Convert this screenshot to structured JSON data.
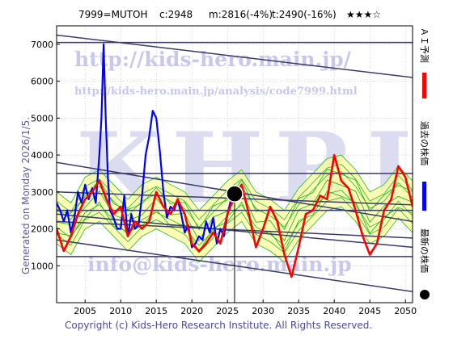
{
  "header": {
    "code": "7999=MUTOH",
    "current": "c:2948",
    "metric_m": "m:2816(-4%)",
    "metric_t": "t:2490(-16%)",
    "rating": "★★★☆"
  },
  "watermark": {
    "url": "http://kids-hero.main.jp/",
    "url2": "http://kids-hero.main.jp/analysis/code7999.html",
    "big": "KHRI",
    "email": "info@kids-hero.main.jp"
  },
  "side_label": "Generated on Monday 2026/1/5.",
  "copyright": "Copyright (c) Kids-Hero Research Institute. All Rights Reserved.",
  "legend": {
    "ai": "ＡＩ予測",
    "past": "過去の株価",
    "latest": "最新の株価"
  },
  "colors": {
    "ai": "#ff0000",
    "past": "#0000ff",
    "band_fill": "#ffff99",
    "band_line": "#22bb22",
    "trend": "#3a3a6a",
    "latest": "#000000"
  },
  "chart_data": {
    "type": "line",
    "xlim": [
      2001,
      2051
    ],
    "ylim": [
      0,
      7500
    ],
    "x_ticks": [
      2005,
      2010,
      2015,
      2020,
      2025,
      2030,
      2035,
      2040,
      2045,
      2050
    ],
    "y_ticks": [
      1000,
      2000,
      3000,
      4000,
      5000,
      6000,
      7000
    ],
    "grid": true,
    "series": [
      {
        "name": "過去の株価",
        "x": [
          2001.0,
          2001.5,
          2002.0,
          2002.5,
          2003.0,
          2003.5,
          2004.0,
          2004.5,
          2005.0,
          2005.5,
          2006.0,
          2006.5,
          2007.0,
          2007.3,
          2007.6,
          2007.9,
          2008.2,
          2008.5,
          2009.0,
          2009.5,
          2010.0,
          2010.5,
          2011.0,
          2011.5,
          2012.0,
          2012.5,
          2013.0,
          2013.5,
          2014.0,
          2014.5,
          2015.0,
          2015.5,
          2016.0,
          2016.5,
          2017.0,
          2017.5,
          2018.0,
          2018.5,
          2019.0,
          2019.5,
          2020.0,
          2020.5,
          2021.0,
          2021.5,
          2022.0,
          2022.5,
          2023.0,
          2023.5,
          2024.0,
          2024.5,
          2025.0,
          2025.5,
          2025.9
        ],
        "y": [
          2700,
          2500,
          2200,
          2500,
          1900,
          2300,
          3000,
          2700,
          3200,
          2800,
          3100,
          2700,
          4000,
          5000,
          7000,
          5000,
          3400,
          2500,
          2300,
          2000,
          2000,
          2900,
          1800,
          2400,
          2000,
          2100,
          2900,
          4000,
          4500,
          5200,
          5000,
          4100,
          3000,
          2300,
          2600,
          2500,
          2800,
          2400,
          1900,
          2100,
          1500,
          1600,
          1800,
          1700,
          2200,
          1900,
          2300,
          1600,
          2000,
          1800,
          2400,
          2800,
          2948
        ]
      },
      {
        "name": "ＡＩ予測",
        "x": [
          2001.0,
          2002.0,
          2003.0,
          2004.0,
          2005.0,
          2006.0,
          2007.0,
          2008.0,
          2009.0,
          2010.0,
          2011.0,
          2012.0,
          2013.0,
          2014.0,
          2015.0,
          2016.0,
          2017.0,
          2018.0,
          2019.0,
          2020.0,
          2021.0,
          2022.0,
          2023.0,
          2024.0,
          2025.0,
          2026.0,
          2027.0,
          2028.0,
          2029.0,
          2030.0,
          2031.0,
          2032.0,
          2033.0,
          2034.0,
          2035.0,
          2036.0,
          2037.0,
          2038.0,
          2039.0,
          2040.0,
          2041.0,
          2042.0,
          2043.0,
          2044.0,
          2045.0,
          2046.0,
          2047.0,
          2048.0,
          2049.0,
          2050.0,
          2051.0
        ],
        "y": [
          2000,
          1400,
          1800,
          2400,
          2800,
          3000,
          3300,
          2800,
          2400,
          2600,
          1800,
          2200,
          2000,
          2200,
          3000,
          2600,
          2400,
          2800,
          2400,
          1600,
          1400,
          1600,
          1900,
          1600,
          2400,
          2900,
          3200,
          2400,
          1500,
          2000,
          2600,
          2200,
          1300,
          700,
          1500,
          2400,
          2500,
          2900,
          2800,
          4000,
          3300,
          3100,
          2500,
          1800,
          1300,
          1600,
          2500,
          2800,
          3700,
          3400,
          2600
        ]
      }
    ],
    "band_center": {
      "x": [
        2001.0,
        2003.0,
        2005.0,
        2007.0,
        2009.0,
        2011.0,
        2013.0,
        2015.0,
        2017.0,
        2019.0,
        2021.0,
        2023.0,
        2025.0,
        2027.0,
        2029.0,
        2031.0,
        2033.0,
        2035.0,
        2037.0,
        2039.0,
        2041.0,
        2043.0,
        2045.0,
        2047.0,
        2049.0,
        2051.0
      ],
      "y": [
        2300,
        2000,
        2700,
        2900,
        2500,
        2100,
        2500,
        2700,
        2500,
        2300,
        1800,
        2200,
        2600,
        2900,
        2300,
        2100,
        1800,
        2400,
        2800,
        3200,
        3300,
        2900,
        2300,
        2500,
        3000,
        2600
      ]
    },
    "latest_point": {
      "x": 2026.0,
      "y": 2948
    },
    "trend_lines": [
      {
        "x": [
          2001,
          2051
        ],
        "y": [
          7050,
          7050
        ]
      },
      {
        "x": [
          2001,
          2051
        ],
        "y": [
          7250,
          6100
        ]
      },
      {
        "x": [
          2001,
          2051
        ],
        "y": [
          3800,
          2200
        ]
      },
      {
        "x": [
          2001,
          2051
        ],
        "y": [
          3500,
          3500
        ]
      },
      {
        "x": [
          2001,
          2051
        ],
        "y": [
          3000,
          2650
        ]
      },
      {
        "x": [
          2001,
          2051
        ],
        "y": [
          2500,
          2500
        ]
      },
      {
        "x": [
          2001,
          2051
        ],
        "y": [
          2400,
          1500
        ]
      },
      {
        "x": [
          2001,
          2051
        ],
        "y": [
          2200,
          1750
        ]
      },
      {
        "x": [
          2001,
          2051
        ],
        "y": [
          1250,
          1250
        ]
      },
      {
        "x": [
          2001,
          2051
        ],
        "y": [
          1700,
          300
        ]
      }
    ]
  }
}
